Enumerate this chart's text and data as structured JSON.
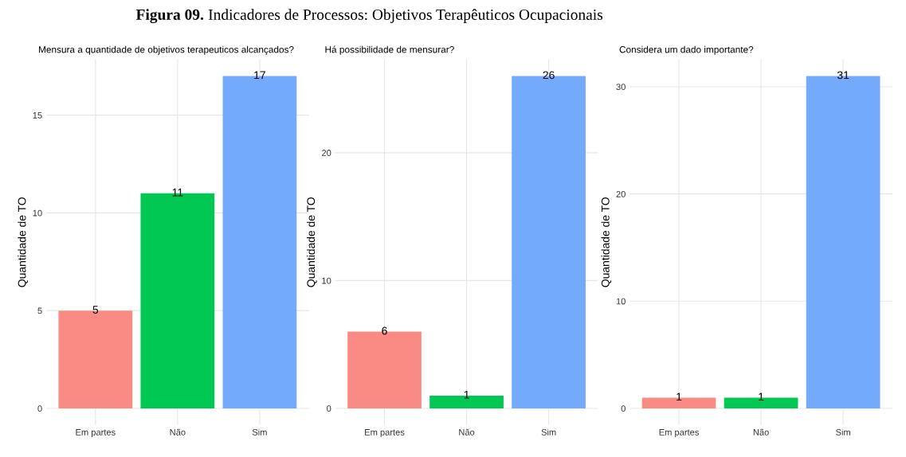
{
  "chart_data": [
    {
      "type": "bar",
      "title": "Mensura a quantidade de objetivos terapeuticos alcançados?",
      "ylabel": "Quantidade de TO",
      "annotations": [
        "Figura 09.",
        "Indicadores de Processos: Objetivos Terapêuticos Ocupacionais"
      ],
      "categories": [
        "Em partes",
        "Não",
        "Sim"
      ],
      "values": [
        5,
        11,
        17
      ],
      "colors": [
        "#f98b84",
        "#00c853",
        "#74aafc"
      ],
      "ylim": [
        -0.85,
        17.85
      ],
      "yticks": [
        0,
        5,
        10,
        15
      ],
      "grid": true,
      "data_labels": true
    },
    {
      "type": "bar",
      "title": "Há possibilidade de mensurar?",
      "ylabel": "Quantidade de TO",
      "categories": [
        "Em partes",
        "Não",
        "Sim"
      ],
      "values": [
        6,
        1,
        26
      ],
      "colors": [
        "#f98b84",
        "#00c853",
        "#74aafc"
      ],
      "ylim": [
        -1.3,
        27.3
      ],
      "yticks": [
        0,
        10,
        20
      ],
      "grid": true,
      "data_labels": true
    },
    {
      "type": "bar",
      "title": "Considera um dado importante?",
      "ylabel": "Quantidade de TO",
      "categories": [
        "Em partes",
        "Não",
        "Sim"
      ],
      "values": [
        1,
        1,
        31
      ],
      "colors": [
        "#f98b84",
        "#00c853",
        "#74aafc"
      ],
      "ylim": [
        -1.55,
        32.55
      ],
      "yticks": [
        0,
        10,
        20,
        30
      ],
      "grid": true,
      "data_labels": true
    }
  ]
}
